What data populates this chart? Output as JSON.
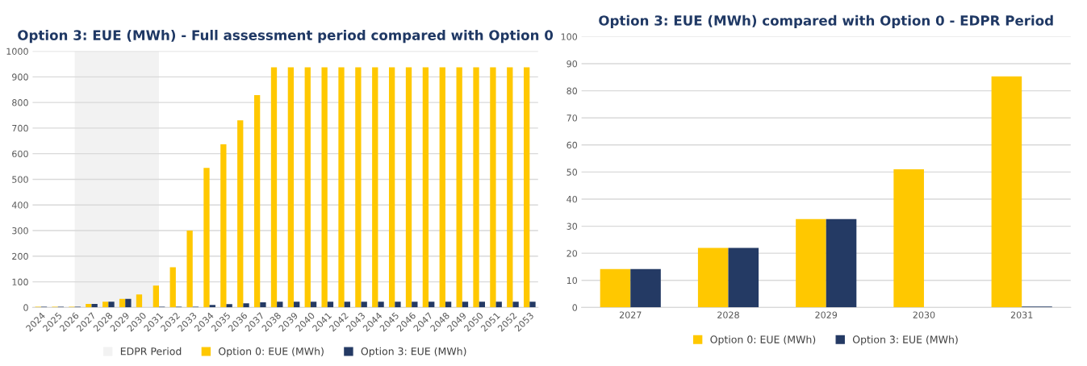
{
  "chart_data": [
    {
      "type": "bar",
      "title": "Option 3: EUE (MWh) - Full assessment period compared with Option 0",
      "categories": [
        "2024",
        "2025",
        "2026",
        "2027",
        "2028",
        "2029",
        "2030",
        "2031",
        "2032",
        "2033",
        "2034",
        "2035",
        "2036",
        "2037",
        "2038",
        "2039",
        "2040",
        "2041",
        "2042",
        "2043",
        "2044",
        "2045",
        "2046",
        "2047",
        "2048",
        "2049",
        "2050",
        "2051",
        "2052",
        "2053"
      ],
      "series": [
        {
          "name": "Option 0: EUE (MWh)",
          "color": "#ffc800",
          "values": [
            3,
            3,
            3,
            14,
            22,
            33,
            51,
            85,
            157,
            300,
            545,
            637,
            730,
            829,
            937,
            937,
            937,
            937,
            937,
            937,
            937,
            937,
            937,
            937,
            937,
            937,
            937,
            937,
            937,
            937
          ]
        },
        {
          "name": "Option 3: EUE (MWh)",
          "color": "#243a64",
          "values": [
            3,
            3,
            3,
            14,
            22,
            33,
            0,
            3,
            3,
            3,
            10,
            13,
            16,
            20,
            22,
            22,
            22,
            22,
            22,
            22,
            22,
            22,
            22,
            22,
            22,
            22,
            22,
            22,
            22,
            22
          ]
        }
      ],
      "bands": [
        {
          "axis": "x",
          "from": "2026",
          "to": "2031",
          "label": "EDPR Period",
          "color": "#f2f2f2"
        }
      ],
      "ylim": [
        0,
        1000
      ],
      "yticks": [
        0,
        100,
        200,
        300,
        400,
        500,
        600,
        700,
        800,
        900,
        1000
      ],
      "grid": "y",
      "legend": "bottom"
    },
    {
      "type": "bar",
      "title": "Option 3: EUE (MWh) compared with Option 0 - EDPR Period",
      "categories": [
        "2027",
        "2028",
        "2029",
        "2030",
        "2031"
      ],
      "series": [
        {
          "name": "Option 0: EUE (MWh)",
          "color": "#ffc800",
          "values": [
            14.2,
            22,
            32.6,
            51,
            85.3
          ]
        },
        {
          "name": "Option 3: EUE (MWh)",
          "color": "#243a64",
          "values": [
            14.2,
            22,
            32.6,
            0,
            0.3
          ]
        }
      ],
      "ylim": [
        0,
        100
      ],
      "yticks": [
        0,
        10,
        20,
        30,
        40,
        50,
        60,
        70,
        80,
        90,
        100
      ],
      "grid": "y",
      "legend": "bottom"
    }
  ]
}
